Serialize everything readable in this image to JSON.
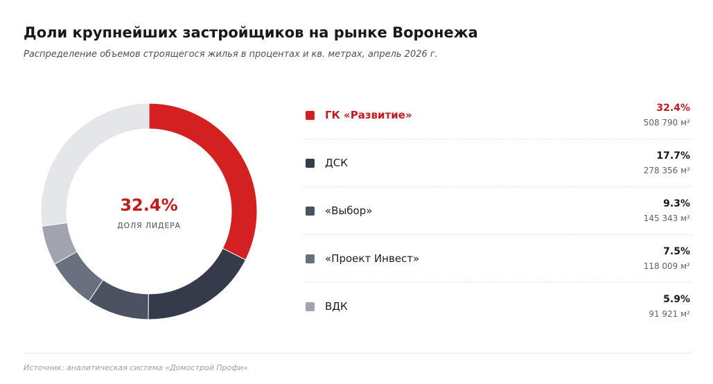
{
  "header": {
    "title": "Доли крупнейших застройщиков на рынке Воронежа",
    "subtitle": "Распределение объемов строящегося жилья в процентах и кв. метрах, апрель 2026 г."
  },
  "center": {
    "value": "32.4%",
    "label": "ДОЛЯ ЛИДЕРА"
  },
  "legend": [
    {
      "name": "ГК «Развитие»",
      "pct": "32.4%",
      "area": "508 790 м²"
    },
    {
      "name": "ДСК",
      "pct": "17.7%",
      "area": "278 356 м²"
    },
    {
      "name": "«Выбор»",
      "pct": "9.3%",
      "area": "145 343 м²"
    },
    {
      "name": "«Проект Инвест»",
      "pct": "7.5%",
      "area": "118 009 м²"
    },
    {
      "name": "ВДК",
      "pct": "5.9%",
      "area": "91 921 м²"
    }
  ],
  "footer": {
    "source": "Источник: аналитическая система «Домострой Профи»"
  },
  "colors": {
    "leader": "#d42020",
    "remainder": "#e4e6ea",
    "accent_text": "#c6191c"
  },
  "chart_data": {
    "type": "pie",
    "variant": "donut",
    "categories": [
      "ГК «Развитие»",
      "ДСК",
      "«Выбор»",
      "«Проект Инвест»",
      "ВДК"
    ],
    "values": [
      32.4,
      17.7,
      9.3,
      7.5,
      5.9
    ],
    "areas_m2": [
      508790,
      278356,
      145343,
      118009,
      91921
    ],
    "colors": [
      "#d42020",
      "#343c4c",
      "#4b5261",
      "#697080",
      "#9fa4ae"
    ],
    "remainder_value": 27.2,
    "remainder_color": "#e4e6ea",
    "unit": "%",
    "legend_position": "right"
  }
}
